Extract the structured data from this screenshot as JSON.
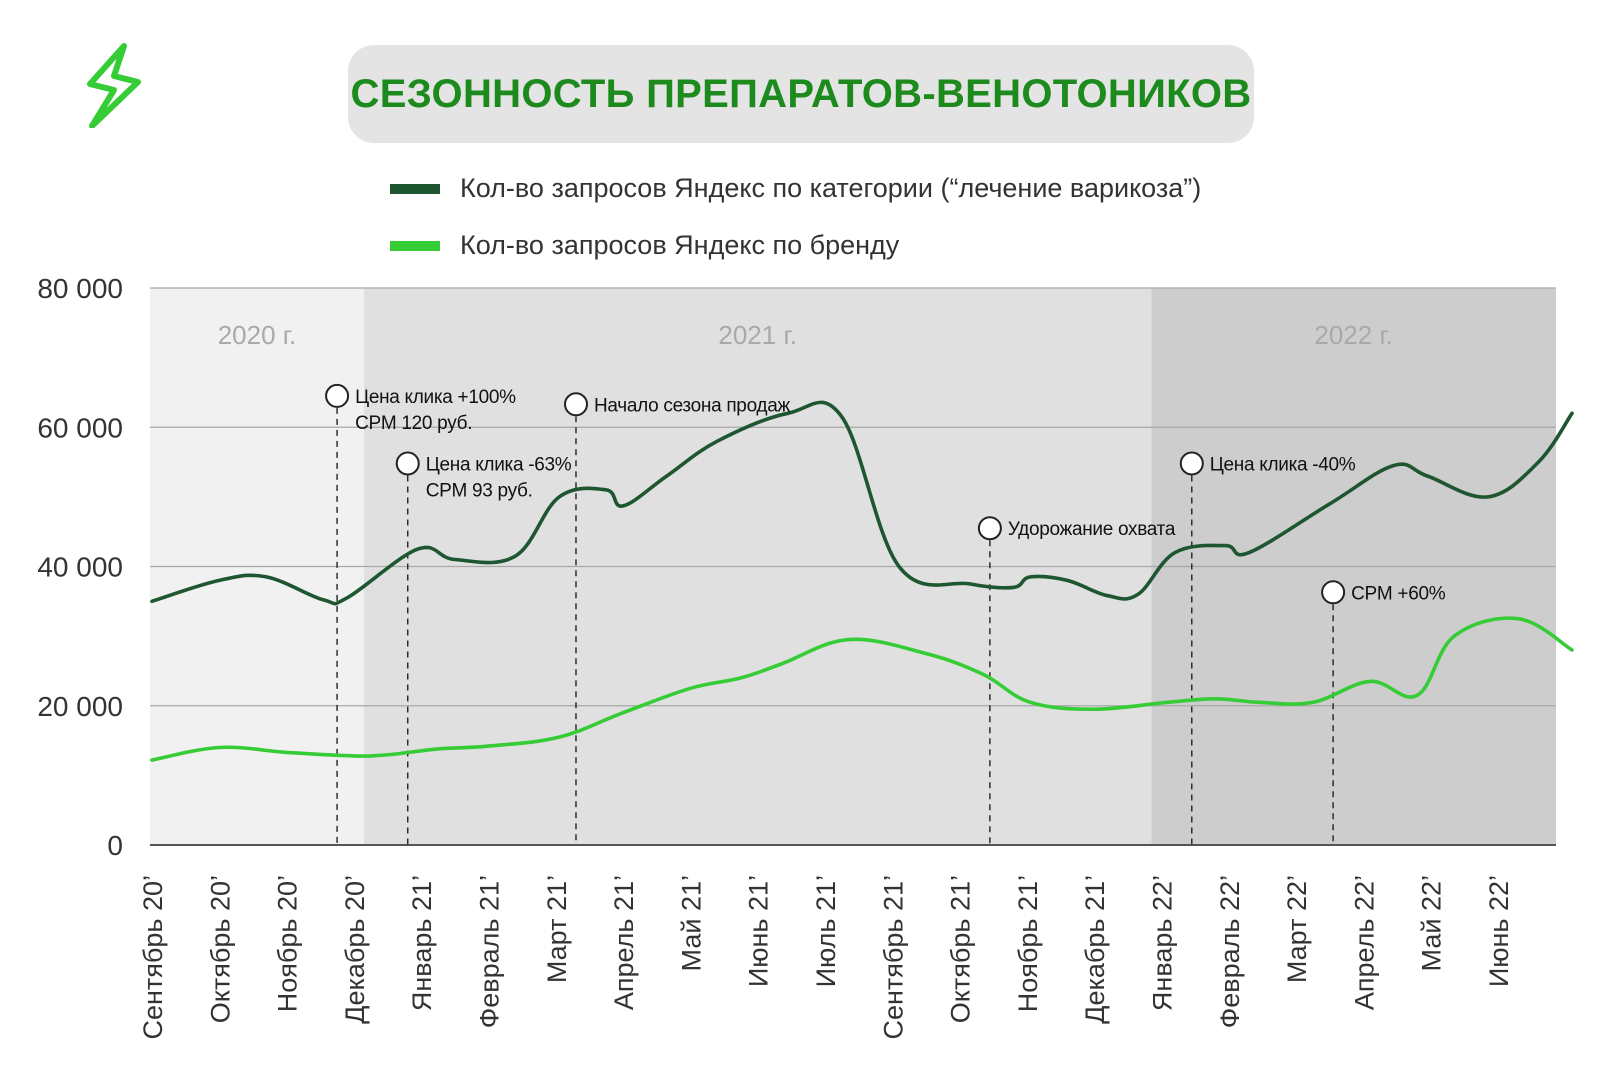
{
  "title": "СЕЗОННОСТЬ ПРЕПАРАТОВ-ВЕНОТОНИКОВ",
  "logo_icon": "lightning-bolt-icon",
  "colors": {
    "title": "#1c8a1c",
    "dark_series": "#1e5631",
    "light_series": "#35cc35",
    "period_2020": "#f1f1f1",
    "period_2021": "#e0e0e0",
    "period_2022": "#cdcdcd"
  },
  "legend": [
    {
      "label": "Кол-во запросов Яндекс по категории (“лечение варикоза”)",
      "color": "#1e5631"
    },
    {
      "label": "Кол-во запросов Яндекс по бренду",
      "color": "#35cc35"
    }
  ],
  "chart_data": {
    "type": "line",
    "title": "СЕЗОННОСТЬ ПРЕПАРАТОВ-ВЕНОТОНИКОВ",
    "ylim": [
      0,
      80000
    ],
    "yticks": [
      0,
      20000,
      40000,
      60000,
      80000
    ],
    "ytick_labels": [
      "0",
      "20 000",
      "40 000",
      "60 000",
      "80 000"
    ],
    "grid": true,
    "legend_position": "top",
    "categories": [
      "Сентябрь 20’",
      "Октябрь 20’",
      "Ноябрь 20’",
      "Декабрь 20’",
      "Январь 21’",
      "Февраль 21’",
      "Март 21’",
      "Апрель 21’",
      "Май 21’",
      "Июнь 21’",
      "Июль 21’",
      "Сентябрь 21’",
      "Октябрь 21’",
      "Ноябрь 21’",
      "Декабрь 21’",
      "Январь 22’",
      "Февраль 22’",
      "Март 22’",
      "Апрель 22’",
      "Май 22’",
      "Июнь 22’"
    ],
    "series": [
      {
        "name": "Кол-во запросов Яндекс по категории (“лечение варикоза”)",
        "x": [
          0,
          1,
          1.7,
          2.55,
          2.9,
          3.95,
          4.5,
          5.4,
          6.05,
          6.75,
          7.0,
          7.65,
          8.4,
          9.45,
          10.25,
          11.1,
          12.15,
          12.8,
          13.05,
          13.6,
          14.2,
          14.65,
          15.2,
          15.95,
          16.3,
          17.5,
          18.45,
          18.95,
          19.85,
          20.6,
          21.1
        ],
        "values": [
          35000,
          38000,
          38500,
          35200,
          35500,
          42500,
          41000,
          41500,
          50000,
          51000,
          48700,
          53000,
          58000,
          62000,
          61500,
          40000,
          37500,
          37000,
          38500,
          38000,
          35800,
          36000,
          42000,
          43000,
          42000,
          49000,
          54500,
          53000,
          50000,
          55000,
          62000
        ]
      },
      {
        "name": "Кол-во запросов Яндекс по бренду",
        "x": [
          0,
          1,
          2,
          3,
          3.55,
          4.25,
          5,
          6.05,
          7,
          8,
          8.75,
          9.35,
          10.35,
          11.5,
          12.35,
          13.05,
          14,
          15.1,
          15.8,
          16.45,
          17.25,
          18.1,
          18.8,
          19.35,
          20.3,
          21.1
        ],
        "values": [
          12200,
          14000,
          13300,
          12800,
          13000,
          13800,
          14200,
          15500,
          19000,
          22500,
          24000,
          26000,
          29500,
          27500,
          24500,
          20500,
          19500,
          20500,
          21000,
          20500,
          20500,
          23500,
          21500,
          30000,
          32500,
          28000
        ]
      }
    ],
    "periods": [
      {
        "label": "2020 г.",
        "from": -0.05,
        "to": 3.15
      },
      {
        "label": "2021 г.",
        "from": 3.15,
        "to": 14.85
      },
      {
        "label": "2022 г.",
        "from": 14.85,
        "to": 21.15
      }
    ],
    "annotations": [
      {
        "x": 2.75,
        "y": 64500,
        "lines": [
          "Цена клика +100%",
          "CPM 120 руб."
        ]
      },
      {
        "x": 3.8,
        "y": 54800,
        "lines": [
          "Цена клика -63%",
          "CPM 93 руб."
        ]
      },
      {
        "x": 6.3,
        "y": 63300,
        "lines": [
          "Начало сезона продаж"
        ]
      },
      {
        "x": 12.45,
        "y": 45500,
        "lines": [
          "Удорожание охвата"
        ]
      },
      {
        "x": 15.45,
        "y": 54800,
        "lines": [
          "Цена клика -40%"
        ]
      },
      {
        "x": 17.55,
        "y": 36300,
        "lines": [
          "CPM +60%"
        ]
      }
    ]
  }
}
